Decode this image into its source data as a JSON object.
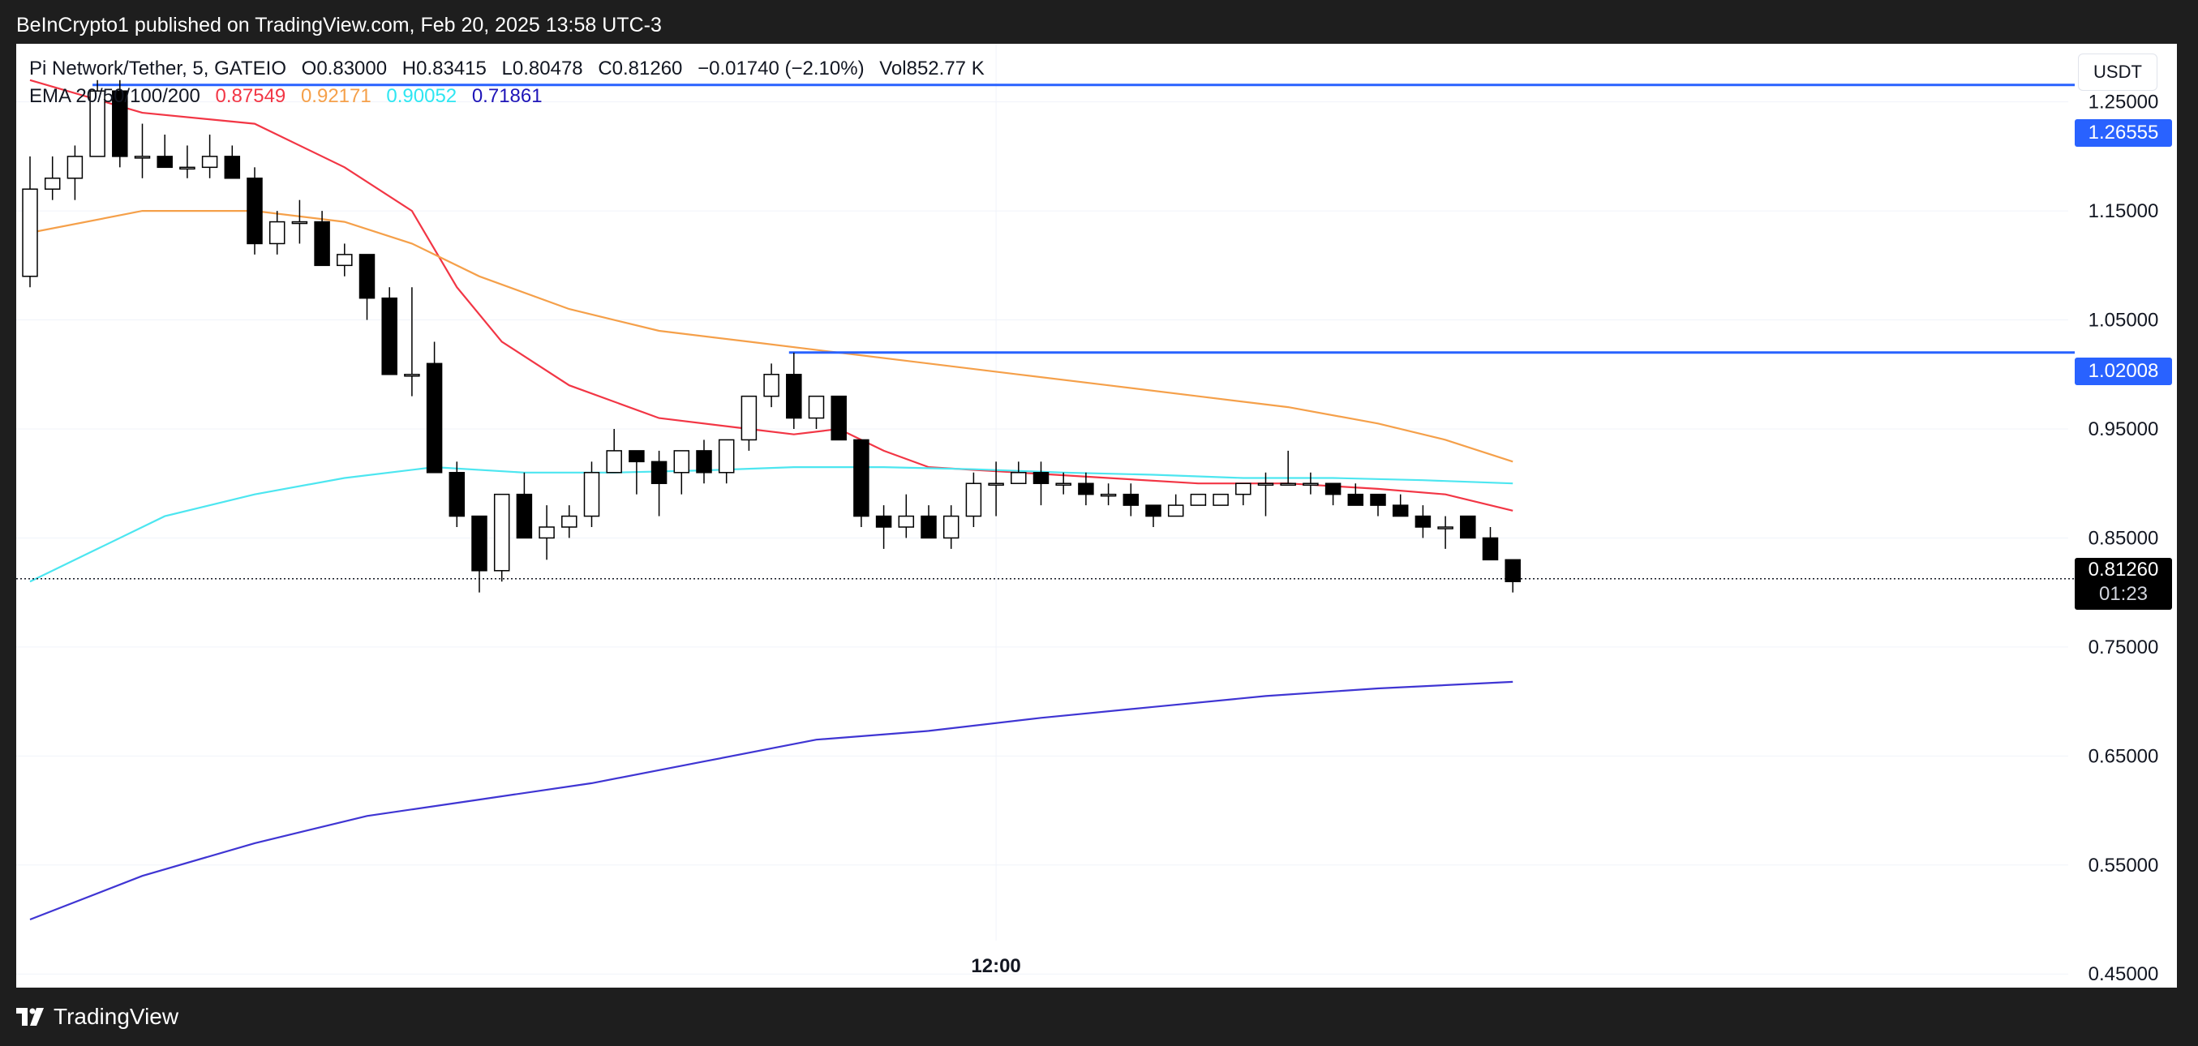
{
  "header": {
    "published": "BeInCrypto1 published on TradingView.com, Feb 20, 2025 13:58 UTC-3"
  },
  "legend": {
    "symbol": "Pi Network/Tether, 5, GATEIO",
    "open": "O0.83000",
    "high": "H0.83415",
    "low": "L0.80478",
    "close": "C0.81260",
    "change": "−0.01740 (−2.10%)",
    "volume": "Vol852.77 K",
    "ema_label": "EMA 20/50/100/200",
    "ema20": "0.87549",
    "ema50": "0.92171",
    "ema100": "0.90052",
    "ema200": "0.71861"
  },
  "currency": "USDT",
  "footer": {
    "logo_text": "TradingView"
  },
  "colors": {
    "up_candle": "#ffffff",
    "down_candle": "#000000",
    "ema20": "#f23645",
    "ema50": "#f5a04a",
    "ema100": "#4de6f0",
    "ema200": "#3f35d3",
    "level_line": "#2962ff"
  },
  "chart_data": {
    "type": "candlestick",
    "timeframe": "5",
    "y_ticks": [
      "1.25000",
      "1.15000",
      "1.05000",
      "0.95000",
      "0.85000",
      "0.75000",
      "0.65000",
      "0.55000",
      "0.45000"
    ],
    "ylim": [
      0.41,
      1.31
    ],
    "x_ticks": [
      {
        "index": 43,
        "label": "12:00"
      }
    ],
    "levels": [
      {
        "value": 1.26555,
        "label": "1.26555",
        "start_index": 3
      },
      {
        "value": 1.02008,
        "label": "1.02008",
        "start_index": 34
      }
    ],
    "last_price": {
      "value": 0.8126,
      "label": "0.81260",
      "countdown": "01:23"
    },
    "candles": [
      {
        "o": 1.09,
        "h": 1.2,
        "l": 1.08,
        "c": 1.17
      },
      {
        "o": 1.17,
        "h": 1.2,
        "l": 1.16,
        "c": 1.18
      },
      {
        "o": 1.18,
        "h": 1.21,
        "l": 1.16,
        "c": 1.2
      },
      {
        "o": 1.2,
        "h": 1.27,
        "l": 1.2,
        "c": 1.26
      },
      {
        "o": 1.26,
        "h": 1.27,
        "l": 1.19,
        "c": 1.2
      },
      {
        "o": 1.2,
        "h": 1.23,
        "l": 1.18,
        "c": 1.2
      },
      {
        "o": 1.2,
        "h": 1.22,
        "l": 1.19,
        "c": 1.19
      },
      {
        "o": 1.19,
        "h": 1.21,
        "l": 1.18,
        "c": 1.19
      },
      {
        "o": 1.19,
        "h": 1.22,
        "l": 1.18,
        "c": 1.2
      },
      {
        "o": 1.2,
        "h": 1.21,
        "l": 1.18,
        "c": 1.18
      },
      {
        "o": 1.18,
        "h": 1.19,
        "l": 1.11,
        "c": 1.12
      },
      {
        "o": 1.12,
        "h": 1.15,
        "l": 1.11,
        "c": 1.14
      },
      {
        "o": 1.14,
        "h": 1.16,
        "l": 1.12,
        "c": 1.14
      },
      {
        "o": 1.14,
        "h": 1.15,
        "l": 1.1,
        "c": 1.1
      },
      {
        "o": 1.1,
        "h": 1.12,
        "l": 1.09,
        "c": 1.11
      },
      {
        "o": 1.11,
        "h": 1.11,
        "l": 1.05,
        "c": 1.07
      },
      {
        "o": 1.07,
        "h": 1.08,
        "l": 1.0,
        "c": 1.0
      },
      {
        "o": 1.0,
        "h": 1.08,
        "l": 0.98,
        "c": 1.0
      },
      {
        "o": 1.01,
        "h": 1.03,
        "l": 0.91,
        "c": 0.91
      },
      {
        "o": 0.91,
        "h": 0.92,
        "l": 0.86,
        "c": 0.87
      },
      {
        "o": 0.87,
        "h": 0.87,
        "l": 0.8,
        "c": 0.82
      },
      {
        "o": 0.82,
        "h": 0.89,
        "l": 0.81,
        "c": 0.89
      },
      {
        "o": 0.89,
        "h": 0.91,
        "l": 0.85,
        "c": 0.85
      },
      {
        "o": 0.85,
        "h": 0.88,
        "l": 0.83,
        "c": 0.86
      },
      {
        "o": 0.86,
        "h": 0.88,
        "l": 0.85,
        "c": 0.87
      },
      {
        "o": 0.87,
        "h": 0.92,
        "l": 0.86,
        "c": 0.91
      },
      {
        "o": 0.91,
        "h": 0.95,
        "l": 0.91,
        "c": 0.93
      },
      {
        "o": 0.93,
        "h": 0.93,
        "l": 0.89,
        "c": 0.92
      },
      {
        "o": 0.92,
        "h": 0.93,
        "l": 0.87,
        "c": 0.9
      },
      {
        "o": 0.91,
        "h": 0.93,
        "l": 0.89,
        "c": 0.93
      },
      {
        "o": 0.93,
        "h": 0.94,
        "l": 0.9,
        "c": 0.91
      },
      {
        "o": 0.91,
        "h": 0.94,
        "l": 0.9,
        "c": 0.94
      },
      {
        "o": 0.94,
        "h": 0.98,
        "l": 0.93,
        "c": 0.98
      },
      {
        "o": 0.98,
        "h": 1.01,
        "l": 0.97,
        "c": 1.0
      },
      {
        "o": 1.0,
        "h": 1.02,
        "l": 0.95,
        "c": 0.96
      },
      {
        "o": 0.96,
        "h": 0.98,
        "l": 0.95,
        "c": 0.98
      },
      {
        "o": 0.98,
        "h": 0.98,
        "l": 0.94,
        "c": 0.94
      },
      {
        "o": 0.94,
        "h": 0.94,
        "l": 0.86,
        "c": 0.87
      },
      {
        "o": 0.87,
        "h": 0.88,
        "l": 0.84,
        "c": 0.86
      },
      {
        "o": 0.86,
        "h": 0.89,
        "l": 0.85,
        "c": 0.87
      },
      {
        "o": 0.87,
        "h": 0.88,
        "l": 0.85,
        "c": 0.85
      },
      {
        "o": 0.85,
        "h": 0.88,
        "l": 0.84,
        "c": 0.87
      },
      {
        "o": 0.87,
        "h": 0.91,
        "l": 0.86,
        "c": 0.9
      },
      {
        "o": 0.9,
        "h": 0.92,
        "l": 0.87,
        "c": 0.9
      },
      {
        "o": 0.9,
        "h": 0.92,
        "l": 0.9,
        "c": 0.91
      },
      {
        "o": 0.91,
        "h": 0.92,
        "l": 0.88,
        "c": 0.9
      },
      {
        "o": 0.9,
        "h": 0.91,
        "l": 0.89,
        "c": 0.9
      },
      {
        "o": 0.9,
        "h": 0.91,
        "l": 0.88,
        "c": 0.89
      },
      {
        "o": 0.89,
        "h": 0.9,
        "l": 0.88,
        "c": 0.89
      },
      {
        "o": 0.89,
        "h": 0.9,
        "l": 0.87,
        "c": 0.88
      },
      {
        "o": 0.88,
        "h": 0.88,
        "l": 0.86,
        "c": 0.87
      },
      {
        "o": 0.87,
        "h": 0.89,
        "l": 0.87,
        "c": 0.88
      },
      {
        "o": 0.88,
        "h": 0.89,
        "l": 0.88,
        "c": 0.89
      },
      {
        "o": 0.88,
        "h": 0.89,
        "l": 0.88,
        "c": 0.89
      },
      {
        "o": 0.89,
        "h": 0.9,
        "l": 0.88,
        "c": 0.9
      },
      {
        "o": 0.9,
        "h": 0.91,
        "l": 0.87,
        "c": 0.9
      },
      {
        "o": 0.9,
        "h": 0.93,
        "l": 0.9,
        "c": 0.9
      },
      {
        "o": 0.9,
        "h": 0.91,
        "l": 0.89,
        "c": 0.9
      },
      {
        "o": 0.9,
        "h": 0.9,
        "l": 0.88,
        "c": 0.89
      },
      {
        "o": 0.89,
        "h": 0.9,
        "l": 0.88,
        "c": 0.88
      },
      {
        "o": 0.89,
        "h": 0.89,
        "l": 0.87,
        "c": 0.88
      },
      {
        "o": 0.88,
        "h": 0.89,
        "l": 0.87,
        "c": 0.87
      },
      {
        "o": 0.87,
        "h": 0.88,
        "l": 0.85,
        "c": 0.86
      },
      {
        "o": 0.86,
        "h": 0.87,
        "l": 0.84,
        "c": 0.86
      },
      {
        "o": 0.87,
        "h": 0.87,
        "l": 0.85,
        "c": 0.85
      },
      {
        "o": 0.85,
        "h": 0.86,
        "l": 0.83,
        "c": 0.83
      },
      {
        "o": 0.83,
        "h": 0.83,
        "l": 0.8,
        "c": 0.81
      }
    ],
    "series": [
      {
        "name": "EMA 20",
        "color": "#f23645",
        "points": [
          [
            0,
            1.27
          ],
          [
            5,
            1.24
          ],
          [
            10,
            1.23
          ],
          [
            14,
            1.19
          ],
          [
            17,
            1.15
          ],
          [
            19,
            1.08
          ],
          [
            21,
            1.03
          ],
          [
            24,
            0.99
          ],
          [
            28,
            0.96
          ],
          [
            32,
            0.95
          ],
          [
            34,
            0.945
          ],
          [
            36,
            0.95
          ],
          [
            38,
            0.93
          ],
          [
            40,
            0.915
          ],
          [
            44,
            0.91
          ],
          [
            48,
            0.905
          ],
          [
            52,
            0.9
          ],
          [
            56,
            0.9
          ],
          [
            60,
            0.895
          ],
          [
            63,
            0.89
          ],
          [
            66,
            0.875
          ]
        ]
      },
      {
        "name": "EMA 50",
        "color": "#f5a04a",
        "points": [
          [
            0,
            1.13
          ],
          [
            5,
            1.15
          ],
          [
            10,
            1.15
          ],
          [
            14,
            1.14
          ],
          [
            17,
            1.12
          ],
          [
            20,
            1.09
          ],
          [
            24,
            1.06
          ],
          [
            28,
            1.04
          ],
          [
            32,
            1.03
          ],
          [
            36,
            1.02
          ],
          [
            40,
            1.01
          ],
          [
            44,
            1.0
          ],
          [
            48,
            0.99
          ],
          [
            52,
            0.98
          ],
          [
            56,
            0.97
          ],
          [
            60,
            0.955
          ],
          [
            63,
            0.94
          ],
          [
            66,
            0.92
          ]
        ]
      },
      {
        "name": "EMA 100",
        "color": "#4de6f0",
        "points": [
          [
            0,
            0.81
          ],
          [
            3,
            0.84
          ],
          [
            6,
            0.87
          ],
          [
            10,
            0.89
          ],
          [
            14,
            0.905
          ],
          [
            18,
            0.915
          ],
          [
            22,
            0.91
          ],
          [
            26,
            0.91
          ],
          [
            30,
            0.912
          ],
          [
            34,
            0.915
          ],
          [
            38,
            0.915
          ],
          [
            42,
            0.913
          ],
          [
            46,
            0.91
          ],
          [
            50,
            0.908
          ],
          [
            54,
            0.905
          ],
          [
            58,
            0.905
          ],
          [
            62,
            0.903
          ],
          [
            66,
            0.9
          ]
        ]
      },
      {
        "name": "EMA 200",
        "color": "#3f35d3",
        "points": [
          [
            0,
            0.5
          ],
          [
            5,
            0.54
          ],
          [
            10,
            0.57
          ],
          [
            15,
            0.595
          ],
          [
            20,
            0.61
          ],
          [
            25,
            0.625
          ],
          [
            30,
            0.645
          ],
          [
            35,
            0.665
          ],
          [
            40,
            0.673
          ],
          [
            45,
            0.685
          ],
          [
            50,
            0.695
          ],
          [
            55,
            0.705
          ],
          [
            60,
            0.712
          ],
          [
            66,
            0.718
          ]
        ]
      }
    ]
  }
}
